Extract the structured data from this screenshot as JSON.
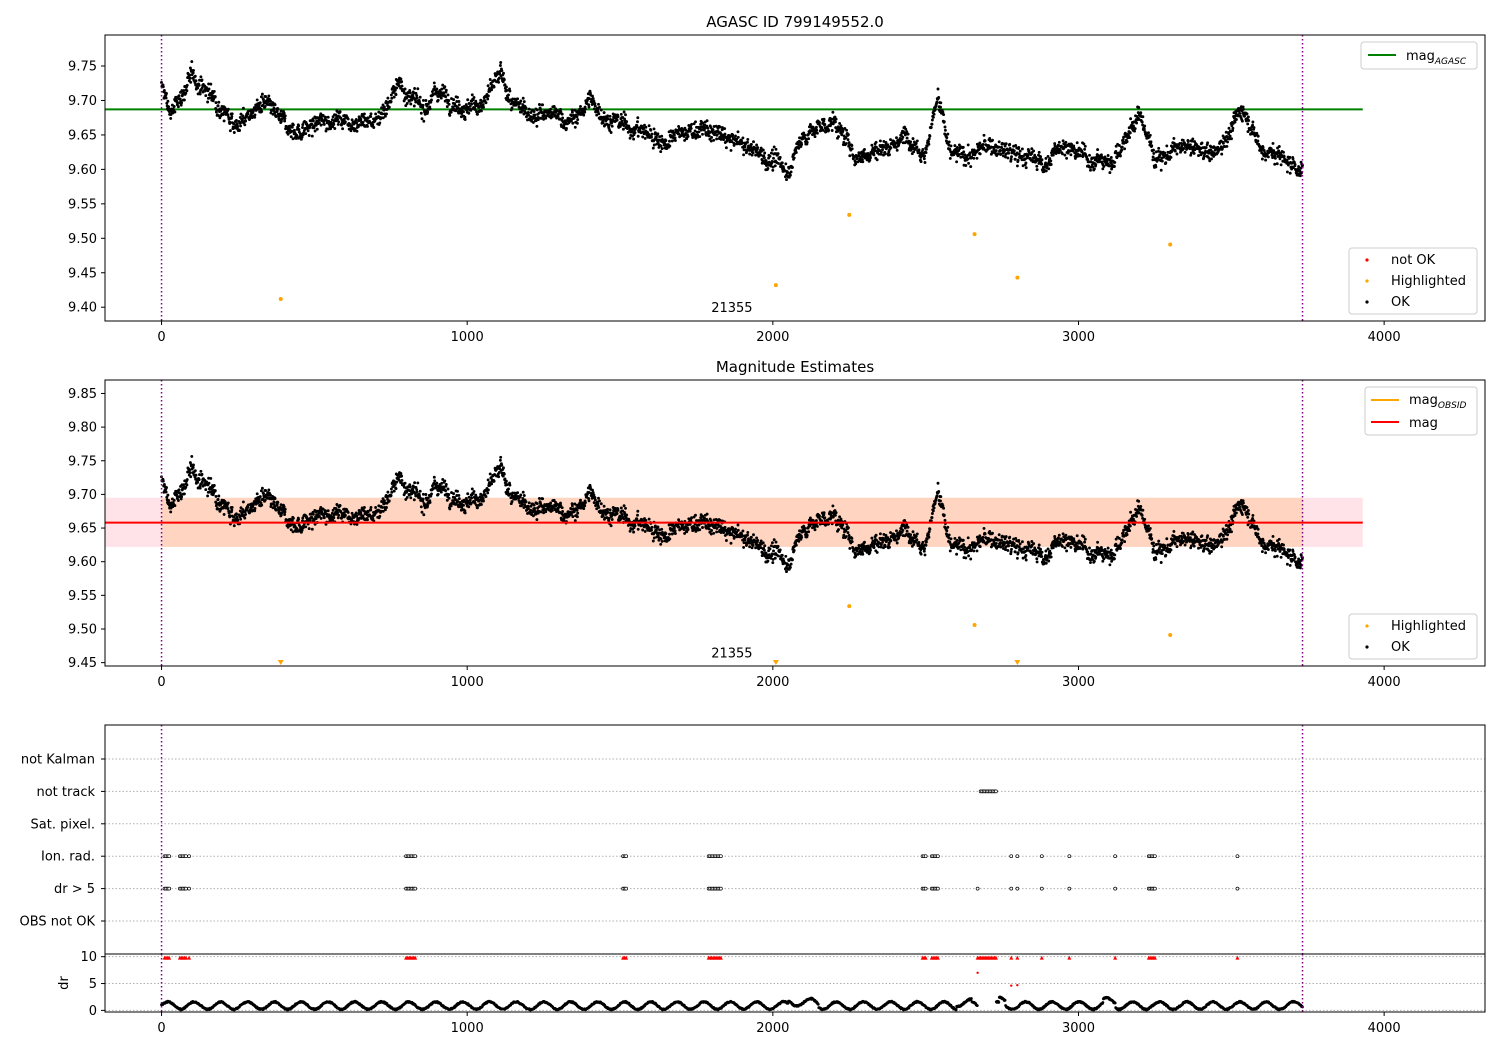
{
  "figure": {
    "background": "#ffffff"
  },
  "colors": {
    "ok": "#000000",
    "highlighted": "#ffa500",
    "not_ok": "#ff0000",
    "mag_agasc": "#008000",
    "mag_obsid": "#ffa500",
    "mag": "#ff0000",
    "band_obsid": "#ffa500",
    "band_mag": "#ffc0cb",
    "obs_boundary": "#800080",
    "grid": "#b0b0b0"
  },
  "chart_data": [
    {
      "id": "top",
      "type": "scatter",
      "title": "AGASC ID 799149552.0",
      "xlim": [
        -185,
        4330
      ],
      "ylim": [
        9.38,
        9.795
      ],
      "xticks": [
        0,
        1000,
        2000,
        3000,
        4000
      ],
      "yticks": [
        9.4,
        9.45,
        9.5,
        9.55,
        9.6,
        9.65,
        9.7,
        9.75
      ],
      "obsid_boundaries": [
        0,
        3733
      ],
      "obsid_label": {
        "text": "21355",
        "x": 1866,
        "y": 9.4
      },
      "hlines": [
        {
          "name": "mag_AGASC",
          "y": 9.687,
          "x0": -185,
          "x1": 3930,
          "color_key": "mag_agasc"
        }
      ],
      "legend_upper": {
        "location": "upper right",
        "entries": [
          {
            "label": "mag",
            "sub": "AGASC",
            "color_key": "mag_agasc",
            "style": "line"
          }
        ]
      },
      "legend_lower": {
        "location": "lower right",
        "entries": [
          {
            "label": "not OK",
            "color_key": "not_ok",
            "style": "dot"
          },
          {
            "label": "Highlighted",
            "color_key": "highlighted",
            "style": "dot"
          },
          {
            "label": "OK",
            "color_key": "ok",
            "style": "dot"
          }
        ]
      },
      "highlighted_points": [
        [
          390,
          9.412
        ],
        [
          2010,
          9.432
        ],
        [
          2250,
          9.534
        ],
        [
          2660,
          9.506
        ],
        [
          2800,
          9.443
        ],
        [
          3300,
          9.491
        ]
      ],
      "ok_series": {
        "x_range": [
          0,
          3733
        ],
        "level_curve": [
          [
            0,
            9.72
          ],
          [
            30,
            9.68
          ],
          [
            100,
            9.735
          ],
          [
            180,
            9.7
          ],
          [
            250,
            9.665
          ],
          [
            330,
            9.695
          ],
          [
            400,
            9.665
          ],
          [
            450,
            9.655
          ],
          [
            560,
            9.675
          ],
          [
            700,
            9.67
          ],
          [
            780,
            9.725
          ],
          [
            850,
            9.685
          ],
          [
            900,
            9.715
          ],
          [
            1000,
            9.69
          ],
          [
            1050,
            9.695
          ],
          [
            1110,
            9.735
          ],
          [
            1150,
            9.69
          ],
          [
            1250,
            9.68
          ],
          [
            1350,
            9.67
          ],
          [
            1400,
            9.7
          ],
          [
            1470,
            9.67
          ],
          [
            1550,
            9.66
          ],
          [
            1650,
            9.64
          ],
          [
            1750,
            9.66
          ],
          [
            1850,
            9.645
          ],
          [
            1950,
            9.625
          ],
          [
            2050,
            9.6
          ],
          [
            2100,
            9.65
          ],
          [
            2200,
            9.67
          ],
          [
            2270,
            9.62
          ],
          [
            2350,
            9.63
          ],
          [
            2450,
            9.65
          ],
          [
            2500,
            9.625
          ],
          [
            2540,
            9.71
          ],
          [
            2580,
            9.62
          ],
          [
            2650,
            9.62
          ],
          [
            2700,
            9.635
          ],
          [
            2800,
            9.62
          ],
          [
            2900,
            9.61
          ],
          [
            2950,
            9.64
          ],
          [
            3000,
            9.62
          ],
          [
            3100,
            9.61
          ],
          [
            3150,
            9.64
          ],
          [
            3200,
            9.68
          ],
          [
            3250,
            9.62
          ],
          [
            3350,
            9.63
          ],
          [
            3450,
            9.625
          ],
          [
            3540,
            9.69
          ],
          [
            3600,
            9.63
          ],
          [
            3700,
            9.61
          ],
          [
            3733,
            9.6
          ]
        ],
        "spread": 0.018
      }
    },
    {
      "id": "middle",
      "type": "scatter",
      "title": "Magnitude Estimates",
      "xlim": [
        -185,
        4330
      ],
      "ylim": [
        9.445,
        9.87
      ],
      "xticks": [
        0,
        1000,
        2000,
        3000,
        4000
      ],
      "yticks": [
        9.45,
        9.5,
        9.55,
        9.6,
        9.65,
        9.7,
        9.75,
        9.8,
        9.85
      ],
      "obsid_boundaries": [
        0,
        3733
      ],
      "obsid_label": {
        "text": "21355",
        "x": 1866,
        "y": 9.458
      },
      "hlines": [
        {
          "name": "mag",
          "y": 9.658,
          "x0": -185,
          "x1": 3930,
          "color_key": "mag"
        }
      ],
      "bands": [
        {
          "name": "mag_OBSID",
          "y0": 9.622,
          "y1": 9.695,
          "x0": 0,
          "x1": 3733,
          "color_key": "band_obsid",
          "opacity": 0.28
        },
        {
          "name": "mag",
          "y0": 9.622,
          "y1": 9.695,
          "x0": -185,
          "x1": 3930,
          "color_key": "band_mag",
          "opacity": 0.45
        }
      ],
      "legend_upper": {
        "location": "upper right",
        "entries": [
          {
            "label": "mag",
            "sub": "OBSID",
            "color_key": "mag_obsid",
            "style": "line"
          },
          {
            "label": "mag",
            "color_key": "mag",
            "style": "line"
          }
        ]
      },
      "legend_lower": {
        "location": "lower right",
        "entries": [
          {
            "label": "Highlighted",
            "color_key": "highlighted",
            "style": "dot"
          },
          {
            "label": "OK",
            "color_key": "ok",
            "style": "dot"
          }
        ]
      },
      "highlighted_points": [
        [
          2250,
          9.534
        ],
        [
          2660,
          9.506
        ],
        [
          3300,
          9.491
        ]
      ],
      "clipped_markers": [
        390,
        2010,
        2800
      ],
      "ok_series": {
        "same_as": "top"
      }
    },
    {
      "id": "flags",
      "type": "scatter",
      "xlim": [
        -185,
        4330
      ],
      "categories": [
        "not Kalman",
        "not track",
        "Sat. pixel.",
        "Ion. rad.",
        "dr > 5",
        "OBS not OK"
      ],
      "flag_events": {
        "not track": [
          [
            2680,
            2730
          ]
        ],
        "Ion. rad.": [
          [
            10,
            25
          ],
          [
            60,
            80
          ],
          [
            90,
            90
          ],
          [
            800,
            830
          ],
          [
            1510,
            1520
          ],
          [
            1790,
            1830
          ],
          [
            2490,
            2500
          ],
          [
            2520,
            2540
          ],
          [
            2780,
            2780
          ],
          [
            2800,
            2800
          ],
          [
            2880,
            2880
          ],
          [
            2970,
            2970
          ],
          [
            3120,
            3120
          ],
          [
            3230,
            3250
          ],
          [
            3520,
            3520
          ]
        ],
        "dr > 5": [
          [
            10,
            25
          ],
          [
            60,
            80
          ],
          [
            90,
            90
          ],
          [
            800,
            830
          ],
          [
            1510,
            1520
          ],
          [
            1790,
            1830
          ],
          [
            2490,
            2500
          ],
          [
            2520,
            2540
          ],
          [
            2670,
            2670
          ],
          [
            2780,
            2780
          ],
          [
            2800,
            2800
          ],
          [
            2880,
            2880
          ],
          [
            2970,
            2970
          ],
          [
            3120,
            3120
          ],
          [
            3230,
            3250
          ],
          [
            3520,
            3520
          ]
        ]
      }
    },
    {
      "id": "dr",
      "type": "scatter",
      "ylabel": "dr",
      "xlim": [
        -185,
        4330
      ],
      "ylim": [
        -0.3,
        10.5
      ],
      "xticks": [
        0,
        1000,
        2000,
        3000,
        4000
      ],
      "yticks": [
        0,
        5,
        10
      ],
      "clipped_flags": [
        [
          10,
          25
        ],
        [
          60,
          80
        ],
        [
          90,
          90
        ],
        [
          800,
          830
        ],
        [
          1510,
          1520
        ],
        [
          1790,
          1830
        ],
        [
          2490,
          2500
        ],
        [
          2520,
          2540
        ],
        [
          2670,
          2730
        ],
        [
          2780,
          2780
        ],
        [
          2800,
          2800
        ],
        [
          2880,
          2880
        ],
        [
          2970,
          2970
        ],
        [
          3120,
          3120
        ],
        [
          3230,
          3250
        ],
        [
          3520,
          3520
        ]
      ],
      "extra_points": [
        [
          2670,
          7.0
        ],
        [
          2780,
          4.6
        ],
        [
          2800,
          4.7
        ]
      ],
      "ok_series": {
        "x_range": [
          0,
          3733
        ],
        "typical_range": [
          0,
          2.5
        ]
      }
    }
  ],
  "labels": {
    "top_title": "AGASC ID 799149552.0",
    "mid_title": "Magnitude Estimates",
    "obsid_top": "21355",
    "obsid_mid": "21355",
    "dr_ylabel": "dr",
    "leg_top_upper_main": "mag",
    "leg_top_upper_sub": "AGASC",
    "leg_top_lower": [
      "not OK",
      "Highlighted",
      "OK"
    ],
    "leg_mid_upper_1_main": "mag",
    "leg_mid_upper_1_sub": "OBSID",
    "leg_mid_upper_2": "mag",
    "leg_mid_lower": [
      "Highlighted",
      "OK"
    ],
    "flag_rows": [
      "not Kalman",
      "not track",
      "Sat. pixel.",
      "Ion. rad.",
      "dr > 5",
      "OBS not OK"
    ]
  }
}
